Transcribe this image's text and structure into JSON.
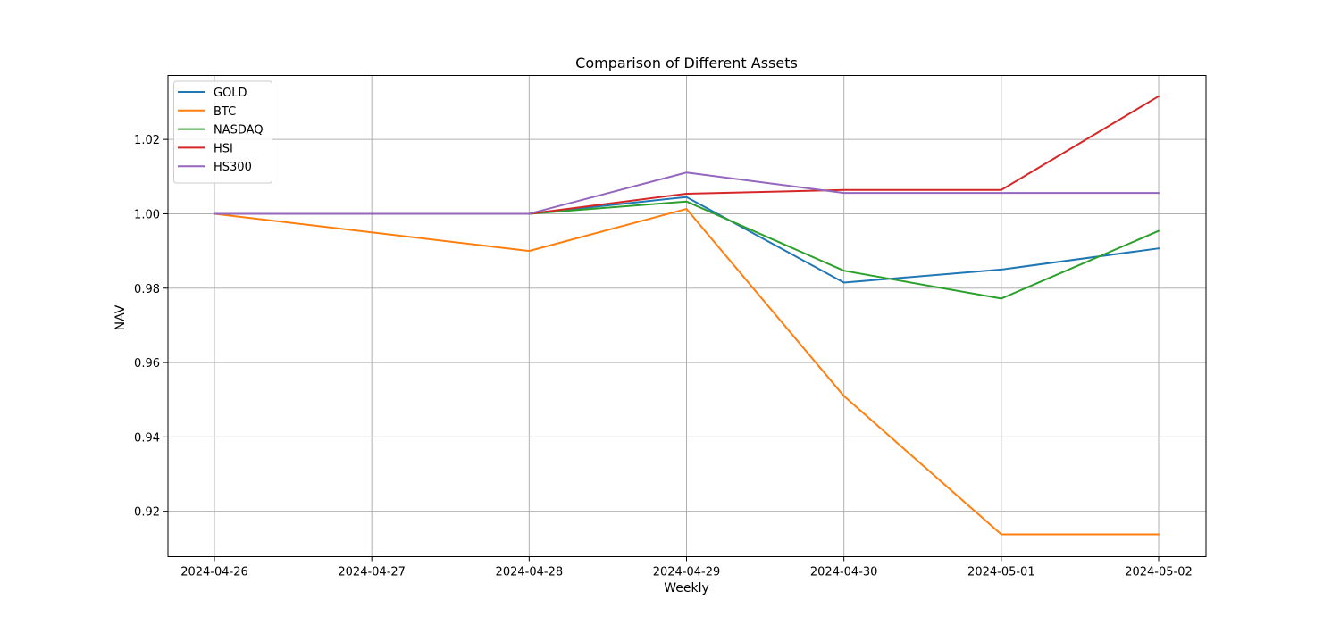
{
  "chart_data": {
    "type": "line",
    "title": "Comparison of Different Assets",
    "xlabel": "Weekly",
    "ylabel": "NAV",
    "x": [
      "2024-04-26",
      "2024-04-27",
      "2024-04-28",
      "2024-04-29",
      "2024-04-30",
      "2024-05-01",
      "2024-05-02"
    ],
    "ylim": [
      0.9078,
      1.0372
    ],
    "yticks": [
      0.92,
      0.94,
      0.96,
      0.98,
      1.0,
      1.02
    ],
    "ytick_labels": [
      "0.92",
      "0.94",
      "0.96",
      "0.98",
      "1.00",
      "1.02"
    ],
    "grid": true,
    "legend_position": "top-left",
    "series": [
      {
        "name": "GOLD",
        "color": "#1f77b4",
        "points": [
          [
            0,
            1.0
          ],
          [
            2,
            1.0
          ],
          [
            3,
            1.0045
          ],
          [
            4,
            0.9815
          ],
          [
            5,
            0.985
          ],
          [
            6,
            0.9907
          ]
        ]
      },
      {
        "name": "BTC",
        "color": "#ff7f0e",
        "points": [
          [
            0,
            1.0
          ],
          [
            2,
            0.99
          ],
          [
            3,
            1.0013
          ],
          [
            4,
            0.951
          ],
          [
            5,
            0.9138
          ],
          [
            6,
            0.9138
          ]
        ]
      },
      {
        "name": "NASDAQ",
        "color": "#2ca02c",
        "points": [
          [
            0,
            1.0
          ],
          [
            2,
            1.0
          ],
          [
            3,
            1.0033
          ],
          [
            4,
            0.9847
          ],
          [
            5,
            0.9772
          ],
          [
            6,
            0.9954
          ]
        ]
      },
      {
        "name": "HSI",
        "color": "#d62728",
        "points": [
          [
            0,
            1.0
          ],
          [
            2,
            1.0
          ],
          [
            3,
            1.0054
          ],
          [
            4,
            1.0064
          ],
          [
            5,
            1.0064
          ],
          [
            6,
            1.0316
          ]
        ]
      },
      {
        "name": "HS300",
        "color": "#9467bd",
        "points": [
          [
            0,
            1.0
          ],
          [
            2,
            1.0
          ],
          [
            3,
            1.0111
          ],
          [
            4,
            1.0056
          ],
          [
            5,
            1.0056
          ],
          [
            6,
            1.0056
          ]
        ]
      }
    ]
  }
}
